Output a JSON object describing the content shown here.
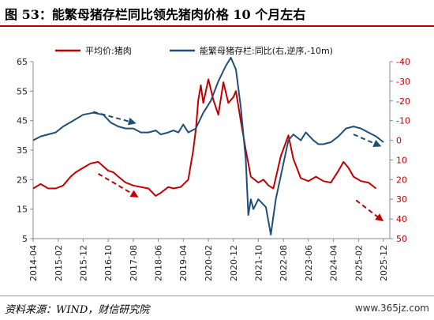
{
  "title": "图 53：能繁母猪存栏同比领先猪肉价格 10 个月左右",
  "source": "资料来源：WIND，财信研究院",
  "watermark": "www.365jz.com",
  "colors": {
    "price": "#c00000",
    "sows": "#1f4e79",
    "title_rule": "#c00000"
  },
  "chart_data": {
    "type": "line",
    "x_ticks": [
      "2014-04",
      "2015-02",
      "2015-12",
      "2016-10",
      "2017-08",
      "2018-06",
      "2019-04",
      "2020-02",
      "2020-12",
      "2021-10",
      "2022-08",
      "2023-06",
      "2024-04",
      "2025-02",
      "2025-12"
    ],
    "y_left": {
      "ticks": [
        5,
        15,
        25,
        35,
        45,
        55,
        65
      ],
      "range": [
        5,
        65
      ]
    },
    "y_right": {
      "ticks": [
        -40,
        -30,
        -20,
        -10,
        0,
        10,
        20,
        30,
        40,
        50
      ],
      "range": [
        -40,
        50
      ],
      "inverted": true
    },
    "legend_position": "top",
    "annotations": [
      "dashed arrow trend indicators"
    ],
    "series": [
      {
        "name": "平均价:猪肉",
        "axis": "left",
        "color": "#c00000",
        "points": [
          [
            "2014-04",
            22
          ],
          [
            "2014-07",
            23.5
          ],
          [
            "2014-10",
            22
          ],
          [
            "2015-01",
            22
          ],
          [
            "2015-04",
            23
          ],
          [
            "2015-07",
            26
          ],
          [
            "2015-09",
            27.5
          ],
          [
            "2015-12",
            29
          ],
          [
            "2016-03",
            30.5
          ],
          [
            "2016-06",
            31
          ],
          [
            "2016-08",
            29.5
          ],
          [
            "2016-10",
            28
          ],
          [
            "2016-12",
            27.5
          ],
          [
            "2017-02",
            26
          ],
          [
            "2017-05",
            24
          ],
          [
            "2017-08",
            23
          ],
          [
            "2017-11",
            22.5
          ],
          [
            "2018-02",
            22
          ],
          [
            "2018-05",
            19.5
          ],
          [
            "2018-07",
            20.5
          ],
          [
            "2018-10",
            22.5
          ],
          [
            "2018-12",
            22
          ],
          [
            "2019-03",
            22.5
          ],
          [
            "2019-06",
            25
          ],
          [
            "2019-08",
            35
          ],
          [
            "2019-09",
            42
          ],
          [
            "2019-10",
            52
          ],
          [
            "2019-11",
            57
          ],
          [
            "2019-12",
            51
          ],
          [
            "2020-02",
            59
          ],
          [
            "2020-04",
            52
          ],
          [
            "2020-06",
            47
          ],
          [
            "2020-08",
            58
          ],
          [
            "2020-10",
            51
          ],
          [
            "2020-12",
            53
          ],
          [
            "2021-01",
            55
          ],
          [
            "2021-03",
            45
          ],
          [
            "2021-05",
            35
          ],
          [
            "2021-07",
            26
          ],
          [
            "2021-10",
            24
          ],
          [
            "2021-12",
            25
          ],
          [
            "2022-02",
            23
          ],
          [
            "2022-04",
            22
          ],
          [
            "2022-07",
            33
          ],
          [
            "2022-10",
            40
          ],
          [
            "2022-12",
            32
          ],
          [
            "2023-03",
            25.5
          ],
          [
            "2023-06",
            24.5
          ],
          [
            "2023-09",
            26
          ],
          [
            "2023-12",
            24.5
          ],
          [
            "2024-03",
            24
          ],
          [
            "2024-06",
            28
          ],
          [
            "2024-08",
            31
          ],
          [
            "2024-10",
            29
          ],
          [
            "2024-12",
            26
          ],
          [
            "2025-03",
            24.5
          ],
          [
            "2025-06",
            24
          ],
          [
            "2025-09",
            22
          ]
        ]
      },
      {
        "name": "能繁母猪存栏:同比(右,逆序,-10m)",
        "axis": "right",
        "color": "#1f4e79",
        "points": [
          [
            "2014-04",
            0
          ],
          [
            "2014-07",
            -2
          ],
          [
            "2014-10",
            -3
          ],
          [
            "2015-01",
            -4
          ],
          [
            "2015-04",
            -7
          ],
          [
            "2015-08",
            -10
          ],
          [
            "2015-12",
            -13
          ],
          [
            "2016-04",
            -14
          ],
          [
            "2016-08",
            -13
          ],
          [
            "2016-11",
            -9
          ],
          [
            "2017-02",
            -7
          ],
          [
            "2017-05",
            -6
          ],
          [
            "2017-08",
            -6
          ],
          [
            "2017-11",
            -4
          ],
          [
            "2018-02",
            -4
          ],
          [
            "2018-05",
            -5
          ],
          [
            "2018-07",
            -3
          ],
          [
            "2018-10",
            -4
          ],
          [
            "2018-12",
            -5
          ],
          [
            "2019-02",
            -4
          ],
          [
            "2019-04",
            -8
          ],
          [
            "2019-06",
            -4
          ],
          [
            "2019-09",
            -6
          ],
          [
            "2019-12",
            -14
          ],
          [
            "2020-03",
            -20
          ],
          [
            "2020-06",
            -30
          ],
          [
            "2020-09",
            -38
          ],
          [
            "2020-11",
            -42
          ],
          [
            "2021-01",
            -36
          ],
          [
            "2021-03",
            -17
          ],
          [
            "2021-05",
            10
          ],
          [
            "2021-06",
            38
          ],
          [
            "2021-07",
            30
          ],
          [
            "2021-08",
            35
          ],
          [
            "2021-10",
            30
          ],
          [
            "2022-01",
            34
          ],
          [
            "2022-03",
            48
          ],
          [
            "2022-05",
            30
          ],
          [
            "2022-08",
            12
          ],
          [
            "2022-10",
            0
          ],
          [
            "2022-12",
            -3
          ],
          [
            "2023-03",
            0
          ],
          [
            "2023-05",
            -4
          ],
          [
            "2023-08",
            0
          ],
          [
            "2023-10",
            2
          ],
          [
            "2023-12",
            2
          ],
          [
            "2024-03",
            1
          ],
          [
            "2024-06",
            -2
          ],
          [
            "2024-09",
            -6
          ],
          [
            "2024-12",
            -7
          ],
          [
            "2025-03",
            -6
          ],
          [
            "2025-06",
            -4
          ],
          [
            "2025-09",
            -2
          ],
          [
            "2025-12",
            1
          ]
        ]
      }
    ]
  }
}
